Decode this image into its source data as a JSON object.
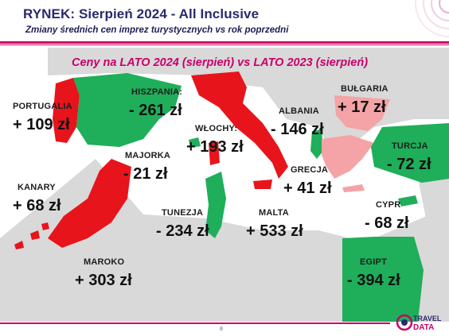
{
  "header": {
    "title": "RYNEK: Sierpień 2024 - All Inclusive",
    "subtitle": "Zmiany średnich cen imprez turystycznych vs rok poprzedni"
  },
  "map_title": "Ceny na LATO 2024 (sierpień) vs  LATO 2023 (sierpień)",
  "colors": {
    "increase": "#e8141c",
    "decrease": "#1fae5a",
    "small_increase": "#f4a3a6",
    "land": "#d9d9d9",
    "accent": "#c8006a",
    "title": "#2b2a6c"
  },
  "countries": [
    {
      "id": "portugalia",
      "label": "PORTUGALIA",
      "value": "+ 109 zł",
      "trend": "increase"
    },
    {
      "id": "hiszpania",
      "label": "HISZPANIA:",
      "value": "- 261 zł",
      "trend": "decrease"
    },
    {
      "id": "majorka",
      "label": "MAJORKA",
      "value": "- 21 zł",
      "trend": "decrease"
    },
    {
      "id": "kanary",
      "label": "KANARY",
      "value": "+ 68 zł",
      "trend": "increase"
    },
    {
      "id": "maroko",
      "label": "MAROKO",
      "value": "+ 303 zł",
      "trend": "increase"
    },
    {
      "id": "wlochy",
      "label": "WŁOCHY:",
      "value": "+ 193 zł",
      "trend": "increase"
    },
    {
      "id": "tunezja",
      "label": "TUNEZJA",
      "value": "- 234 zł",
      "trend": "decrease"
    },
    {
      "id": "malta",
      "label": "MALTA",
      "value": "+ 533 zł",
      "trend": "increase"
    },
    {
      "id": "albania",
      "label": "ALBANIA",
      "value": "- 146 zł",
      "trend": "decrease"
    },
    {
      "id": "grecja",
      "label": "GRECJA",
      "value": "+ 41 zł",
      "trend": "small_increase"
    },
    {
      "id": "bulgaria",
      "label": "BUŁGARIA",
      "value": "+ 17 zł",
      "trend": "small_increase"
    },
    {
      "id": "turcja",
      "label": "TURCJA",
      "value": "- 72 zł",
      "trend": "decrease"
    },
    {
      "id": "cypr",
      "label": "CYPR",
      "value": "- 68 zł",
      "trend": "decrease"
    },
    {
      "id": "egipt",
      "label": "EGIPT",
      "value": "- 394 zł",
      "trend": "decrease"
    }
  ],
  "footer": {
    "page_number": "8",
    "logo_top": "TRAVEL",
    "logo_bottom": "DATA"
  }
}
